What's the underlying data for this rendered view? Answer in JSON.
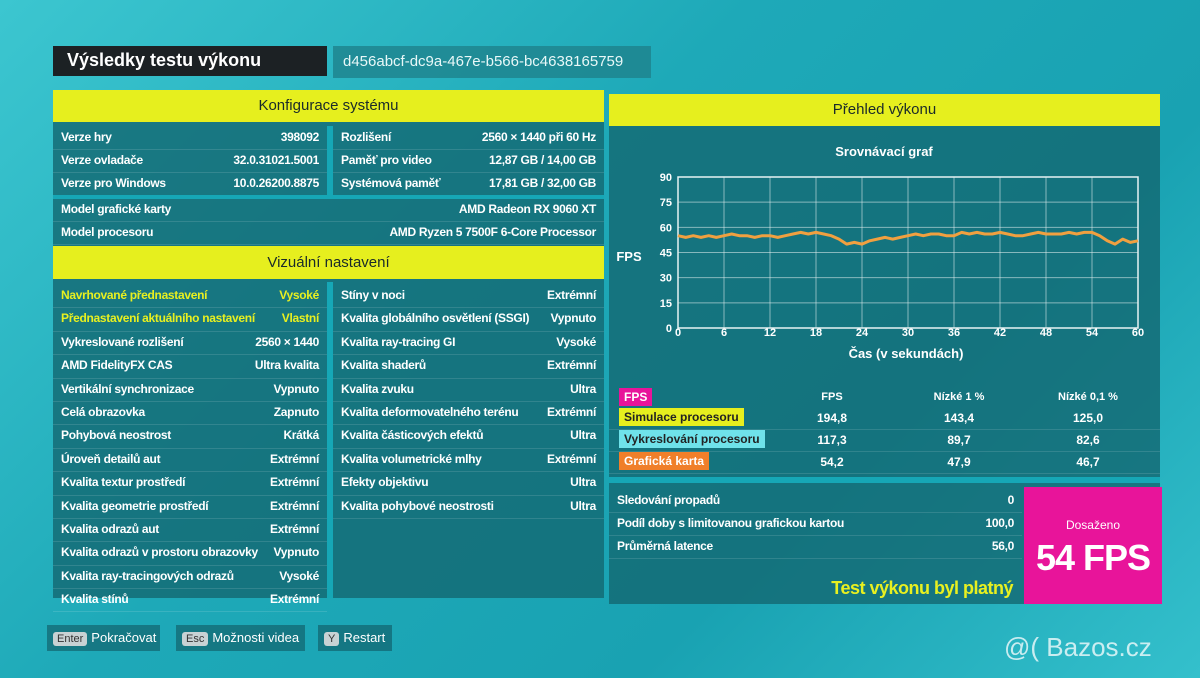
{
  "header": {
    "title": "Výsledky testu výkonu",
    "run_id": "d456abcf-dc9a-467e-b566-bc4638165759"
  },
  "system_config": {
    "title": "Konfigurace systému",
    "left": [
      [
        "Verze hry",
        "398092"
      ],
      [
        "Verze ovladače",
        "32.0.31021.5001"
      ],
      [
        "Verze pro Windows",
        "10.0.26200.8875"
      ]
    ],
    "right": [
      [
        "Rozlišení",
        "2560 × 1440 při 60 Hz"
      ],
      [
        "Paměť pro video",
        "12,87 GB / 14,00 GB"
      ],
      [
        "Systémová paměť",
        "17,81 GB / 32,00 GB"
      ]
    ],
    "hardware": [
      [
        "Model grafické karty",
        "AMD Radeon RX 9060 XT"
      ],
      [
        "Model procesoru",
        "AMD Ryzen 5 7500F 6-Core Processor"
      ]
    ]
  },
  "visual_settings": {
    "title": "Vizuální nastavení",
    "left": [
      [
        "Navrhované přednastavení",
        "Vysoké"
      ],
      [
        "Přednastavení aktuálního nastavení",
        "Vlastní"
      ],
      [
        "Vykreslované rozlišení",
        "2560 × 1440"
      ],
      [
        "AMD FidelityFX CAS",
        "Ultra kvalita"
      ],
      [
        "Vertikální synchronizace",
        "Vypnuto"
      ],
      [
        "Celá obrazovka",
        "Zapnuto"
      ],
      [
        "Pohybová neostrost",
        "Krátká"
      ],
      [
        "Úroveň detailů aut",
        "Extrémní"
      ],
      [
        "Kvalita textur prostředí",
        "Extrémní"
      ],
      [
        "Kvalita geometrie prostředí",
        "Extrémní"
      ],
      [
        "Kvalita odrazů aut",
        "Extrémní"
      ],
      [
        "Kvalita odrazů v prostoru obrazovky",
        "Vypnuto"
      ],
      [
        "Kvalita ray-tracingových odrazů",
        "Vysoké"
      ],
      [
        "Kvalita stínů",
        "Extrémní"
      ]
    ],
    "right": [
      [
        "Stíny v noci",
        "Extrémní"
      ],
      [
        "Kvalita globálního osvětlení (SSGI)",
        "Vypnuto"
      ],
      [
        "Kvalita ray-tracing GI",
        "Vysoké"
      ],
      [
        "Kvalita shaderů",
        "Extrémní"
      ],
      [
        "Kvalita zvuku",
        "Ultra"
      ],
      [
        "Kvalita deformovatelného terénu",
        "Extrémní"
      ],
      [
        "Kvalita částicových efektů",
        "Ultra"
      ],
      [
        "Kvalita volumetrické mlhy",
        "Extrémní"
      ],
      [
        "Efekty objektivu",
        "Ultra"
      ],
      [
        "Kvalita pohybové neostrosti",
        "Ultra"
      ]
    ]
  },
  "performance": {
    "title": "Přehled výkonu",
    "chart": {
      "type": "line",
      "title": "Srovnávací graf",
      "x_label": "Čas (v sekundách)",
      "y_label": "FPS",
      "color": "#f0a040",
      "x": [
        0,
        1,
        2,
        3,
        4,
        5,
        6,
        7,
        8,
        9,
        10,
        11,
        12,
        13,
        14,
        15,
        16,
        17,
        18,
        19,
        20,
        21,
        22,
        23,
        24,
        25,
        26,
        27,
        28,
        29,
        30,
        31,
        32,
        33,
        34,
        35,
        36,
        37,
        38,
        39,
        40,
        41,
        42,
        43,
        44,
        45,
        46,
        47,
        48,
        49,
        50,
        51,
        52,
        53,
        54,
        55,
        56,
        57,
        58,
        59,
        60
      ],
      "values": [
        55,
        54,
        55,
        54,
        55,
        54,
        55,
        56,
        55,
        55,
        54,
        55,
        55,
        54,
        55,
        56,
        57,
        56,
        57,
        56,
        55,
        53,
        50,
        51,
        50,
        52,
        53,
        54,
        53,
        54,
        55,
        56,
        55,
        56,
        56,
        55,
        55,
        57,
        56,
        57,
        56,
        56,
        57,
        56,
        55,
        55,
        56,
        57,
        56,
        56,
        56,
        57,
        56,
        57,
        57,
        55,
        52,
        50,
        53,
        51,
        52
      ],
      "xlim": [
        0,
        60
      ],
      "ylim": [
        0,
        90
      ],
      "xticks": [
        0,
        6,
        12,
        18,
        24,
        30,
        36,
        42,
        48,
        54,
        60
      ],
      "yticks": [
        0,
        15,
        30,
        45,
        60,
        75,
        90
      ],
      "grid": true
    },
    "table": {
      "columns": [
        "FPS",
        "FPS",
        "Nízké 1 %",
        "Nízké 0,1 %"
      ],
      "rows": [
        {
          "label": "Simulace procesoru",
          "color": "#e6ef1e",
          "values": [
            "194,8",
            "143,4",
            "125,0"
          ]
        },
        {
          "label": "Vykreslování procesoru",
          "color": "#6fe2ea",
          "values": [
            "117,3",
            "89,7",
            "82,6"
          ]
        },
        {
          "label": "Grafická karta",
          "color": "#f07f2a",
          "values": [
            "54,2",
            "47,9",
            "46,7"
          ]
        }
      ]
    },
    "stats": [
      [
        "Sledování propadů",
        "0"
      ],
      [
        "Podíl doby s limitovanou grafickou kartou",
        "100,0"
      ],
      [
        "Průměrná latence",
        "56,0"
      ]
    ],
    "verdict": "Test výkonu byl platný",
    "achieved": {
      "label": "Dosaženo",
      "value": "54 FPS"
    }
  },
  "buttons": [
    {
      "key": "Enter",
      "label": "Pokračovat"
    },
    {
      "key": "Esc",
      "label": "Možnosti videa"
    },
    {
      "key": "Y",
      "label": "Restart"
    }
  ],
  "watermark": "@( Bazos.cz"
}
